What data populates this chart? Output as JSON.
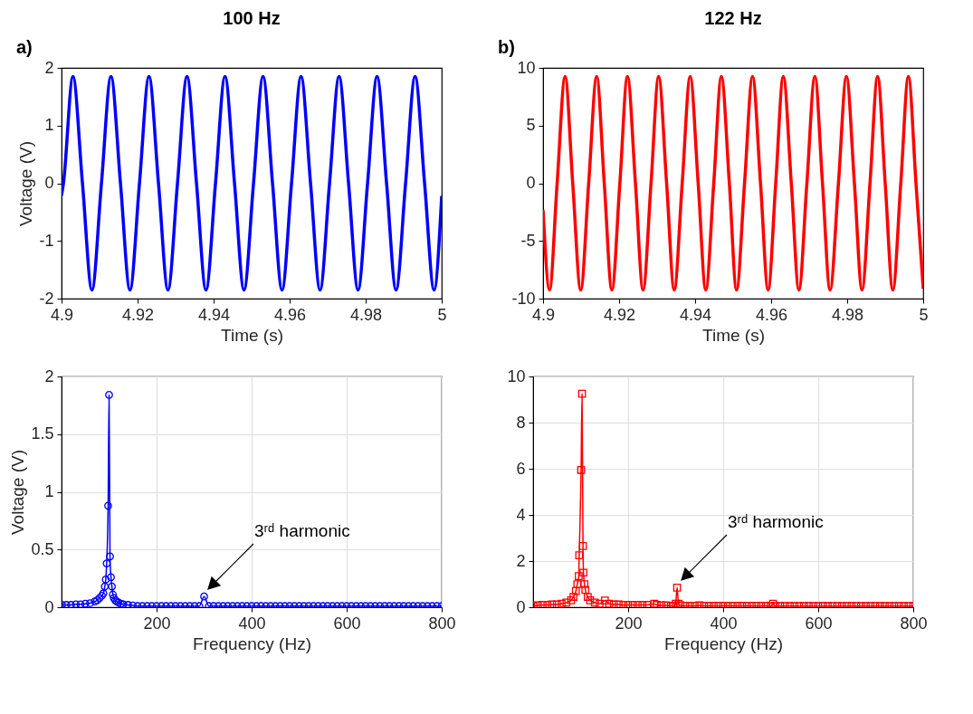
{
  "chart_data": [
    {
      "type": "line",
      "title": "100 Hz",
      "annotations": [
        "a)"
      ],
      "xlabel": "Time (s)",
      "ylabel": "Voltage (V)",
      "xlim": [
        4.9,
        5
      ],
      "ylim": [
        -2,
        2
      ],
      "xticks": [
        4.9,
        4.92,
        4.94,
        4.96,
        4.98,
        5
      ],
      "yticks": [
        -2,
        -1,
        0,
        1,
        2
      ],
      "x": [
        4.9,
        4.9005,
        4.903,
        4.9055,
        4.908,
        4.9105,
        4.913,
        4.9155,
        4.918,
        4.9205,
        4.923,
        4.9255,
        4.928,
        4.9305,
        4.933,
        4.9355,
        4.938,
        4.9405,
        4.943,
        4.9455,
        4.948,
        4.9505,
        4.953,
        4.9555,
        4.958,
        4.9605,
        4.963,
        4.9655,
        4.968,
        4.9705,
        4.973,
        4.9755,
        4.978,
        4.9805,
        4.983,
        4.9855,
        4.988,
        4.9905,
        4.993,
        4.9955,
        4.998,
        5.0
      ],
      "series": [
        {
          "color": "#0000ff",
          "values": [
            -0.21,
            0,
            1.85,
            0,
            -1.85,
            0,
            1.85,
            0,
            -1.85,
            0,
            1.85,
            0,
            -1.85,
            0,
            1.85,
            0,
            -1.85,
            0,
            1.85,
            0,
            -1.85,
            0,
            1.85,
            0,
            -1.85,
            0,
            1.85,
            0,
            -1.85,
            0,
            1.85,
            0,
            -1.85,
            0,
            1.85,
            0,
            -1.85,
            0,
            1.85,
            0,
            -1.85,
            -0.22
          ]
        }
      ]
    },
    {
      "type": "line",
      "title": "122 Hz",
      "annotations": [
        "b)"
      ],
      "xlabel": "Time (s)",
      "xlim": [
        4.9,
        5
      ],
      "ylim": [
        -10,
        10
      ],
      "xticks": [
        4.9,
        4.92,
        4.94,
        4.96,
        4.98,
        5
      ],
      "yticks": [
        -10,
        -5,
        0,
        5,
        10
      ],
      "x": [
        4.9,
        4.9017,
        4.9037,
        4.9058,
        4.9078,
        4.9099,
        4.912,
        4.9141,
        4.9161,
        4.9181,
        4.9202,
        4.9222,
        4.9243,
        4.9263,
        4.9284,
        4.9304,
        4.9325,
        4.9345,
        4.9366,
        4.9387,
        4.9408,
        4.9428,
        4.9449,
        4.9469,
        4.949,
        4.9509,
        4.953,
        4.9551,
        4.9572,
        4.9592,
        4.9612,
        4.9632,
        4.9653,
        4.9673,
        4.9694,
        4.9715,
        4.9735,
        4.9755,
        4.9777,
        4.9798,
        4.9819,
        4.9839,
        4.986,
        4.988,
        4.99,
        4.992,
        4.9941,
        4.9961,
        4.9981,
        5.0
      ],
      "series": [
        {
          "color": "#ff0000",
          "values": [
            -2.3,
            -9.25,
            0,
            9.25,
            0,
            -9.25,
            0,
            9.25,
            0,
            -9.25,
            0,
            9.25,
            0,
            -9.25,
            0,
            9.25,
            0,
            -9.25,
            0,
            9.25,
            0,
            -9.25,
            0,
            9.25,
            0,
            -9.25,
            0,
            9.25,
            0,
            -9.25,
            0,
            9.25,
            0,
            -9.25,
            0,
            9.25,
            0,
            -9.25,
            0,
            9.25,
            0,
            -9.25,
            0,
            9.25,
            0,
            -9.25,
            0,
            9.25,
            0,
            -9.15
          ]
        }
      ]
    },
    {
      "type": "line",
      "marker": "circle",
      "grid": true,
      "annotations": [
        "3ʳᵈ harmonic"
      ],
      "xlabel": "Frequency (Hz)",
      "ylabel": "Voltage (V)",
      "xlim": [
        0,
        800
      ],
      "ylim": [
        0,
        2
      ],
      "xticks": [
        200,
        400,
        600,
        800
      ],
      "yticks": [
        0,
        0.5,
        1,
        1.5,
        2
      ],
      "x": [
        1,
        10,
        20,
        30,
        40,
        50,
        60,
        70,
        75,
        80,
        85,
        88,
        91,
        93,
        95,
        98,
        100,
        102,
        104,
        106,
        108,
        110,
        113,
        116,
        120,
        125,
        130,
        140,
        150,
        160,
        170,
        180,
        190,
        200,
        210,
        220,
        230,
        240,
        250,
        260,
        270,
        280,
        290,
        300,
        310,
        320,
        330,
        340,
        350,
        360,
        370,
        380,
        390,
        400,
        410,
        420,
        430,
        440,
        450,
        460,
        470,
        480,
        490,
        500,
        510,
        520,
        530,
        540,
        550,
        560,
        570,
        580,
        590,
        600,
        610,
        620,
        630,
        640,
        650,
        660,
        670,
        680,
        690,
        700,
        710,
        720,
        730,
        740,
        750,
        760,
        770,
        780,
        790,
        800
      ],
      "series": [
        {
          "color": "#0000ff",
          "values": [
            0.02,
            0.02,
            0.02,
            0.025,
            0.025,
            0.03,
            0.035,
            0.05,
            0.06,
            0.08,
            0.1,
            0.12,
            0.18,
            0.24,
            0.38,
            0.88,
            1.84,
            0.44,
            0.26,
            0.18,
            0.11,
            0.08,
            0.06,
            0.05,
            0.04,
            0.03,
            0.025,
            0.02,
            0.015,
            0.01,
            0.01,
            0.01,
            0.01,
            0.01,
            0.01,
            0.01,
            0.01,
            0.01,
            0.01,
            0.01,
            0.01,
            0.01,
            0.01,
            0.093,
            0.01,
            0.01,
            0.01,
            0.01,
            0.01,
            0.01,
            0.01,
            0.01,
            0.01,
            0.01,
            0.01,
            0.01,
            0.01,
            0.01,
            0.01,
            0.01,
            0.01,
            0.01,
            0.01,
            0.01,
            0.01,
            0.01,
            0.01,
            0.01,
            0.01,
            0.01,
            0.01,
            0.01,
            0.01,
            0.01,
            0.01,
            0.01,
            0.01,
            0.01,
            0.01,
            0.01,
            0.01,
            0.01,
            0.01,
            0.01,
            0.01,
            0.01,
            0.01,
            0.01,
            0.01,
            0.01,
            0.01,
            0.01,
            0.01,
            0.01
          ]
        }
      ]
    },
    {
      "type": "line",
      "marker": "square",
      "grid": true,
      "annotations": [
        "3ʳᵈ harmonic"
      ],
      "xlabel": "Frequency (Hz)",
      "xlim": [
        0,
        800
      ],
      "ylim": [
        0,
        10
      ],
      "xticks": [
        200,
        400,
        600,
        800
      ],
      "yticks": [
        0,
        2,
        4,
        6,
        8,
        10
      ],
      "x": [
        1,
        10,
        20,
        30,
        40,
        50,
        60,
        70,
        80,
        85,
        90,
        93,
        96,
        97,
        101,
        103,
        105,
        106,
        108,
        110,
        115,
        120,
        130,
        140,
        151,
        160,
        170,
        180,
        190,
        200,
        210,
        220,
        230,
        240,
        255,
        260,
        270,
        280,
        290,
        295,
        300,
        303,
        306,
        310,
        320,
        330,
        340,
        350,
        360,
        370,
        380,
        390,
        400,
        410,
        420,
        430,
        440,
        450,
        460,
        470,
        480,
        490,
        500,
        505,
        510,
        520,
        530,
        540,
        550,
        560,
        570,
        580,
        590,
        600,
        610,
        620,
        630,
        640,
        650,
        660,
        670,
        680,
        690,
        700,
        710,
        720,
        730,
        740,
        750,
        760,
        770,
        780,
        790,
        800
      ],
      "series": [
        {
          "color": "#ff0000",
          "values": [
            0.05,
            0.08,
            0.1,
            0.1,
            0.12,
            0.12,
            0.15,
            0.2,
            0.3,
            0.45,
            0.7,
            1.0,
            1.35,
            2.25,
            5.95,
            9.25,
            2.65,
            1.5,
            1.0,
            0.75,
            0.45,
            0.3,
            0.2,
            0.15,
            0.29,
            0.15,
            0.12,
            0.12,
            0.1,
            0.1,
            0.1,
            0.1,
            0.1,
            0.1,
            0.15,
            0.1,
            0.08,
            0.08,
            0.06,
            0.05,
            0.15,
            0.85,
            0.15,
            0.08,
            0.06,
            0.06,
            0.06,
            0.08,
            0.06,
            0.06,
            0.06,
            0.06,
            0.06,
            0.06,
            0.06,
            0.06,
            0.06,
            0.06,
            0.06,
            0.06,
            0.06,
            0.06,
            0.05,
            0.15,
            0.05,
            0.05,
            0.05,
            0.05,
            0.05,
            0.05,
            0.05,
            0.05,
            0.05,
            0.05,
            0.05,
            0.05,
            0.05,
            0.05,
            0.05,
            0.05,
            0.05,
            0.05,
            0.05,
            0.05,
            0.05,
            0.05,
            0.05,
            0.05,
            0.05,
            0.05,
            0.05,
            0.05,
            0.05,
            0.05
          ]
        }
      ]
    }
  ]
}
